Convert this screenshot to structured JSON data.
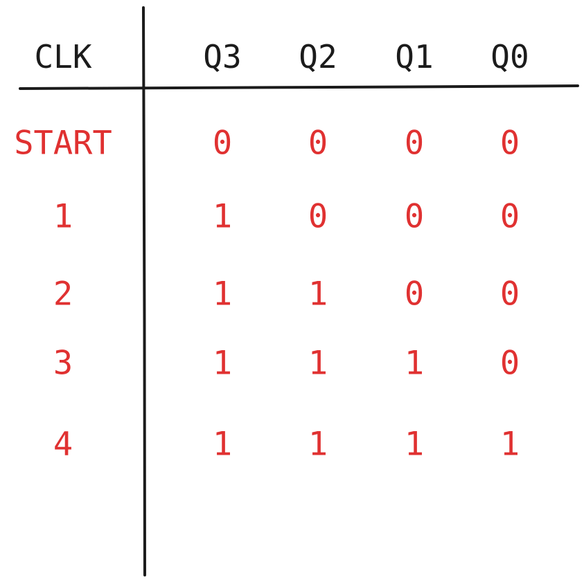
{
  "table": {
    "headers": {
      "clk": "CLK",
      "q3": "Q3",
      "q2": "Q2",
      "q1": "Q1",
      "q0": "Q0"
    },
    "rows": [
      {
        "clk": "START",
        "q3": "0",
        "q2": "0",
        "q1": "0",
        "q0": "0"
      },
      {
        "clk": "1",
        "q3": "1",
        "q2": "0",
        "q1": "0",
        "q0": "0"
      },
      {
        "clk": "2",
        "q3": "1",
        "q2": "1",
        "q1": "0",
        "q0": "0"
      },
      {
        "clk": "3",
        "q3": "1",
        "q2": "1",
        "q1": "1",
        "q0": "0"
      },
      {
        "clk": "4",
        "q3": "1",
        "q2": "1",
        "q1": "1",
        "q0": "1"
      }
    ]
  },
  "colors": {
    "header_text": "#1b1b1b",
    "data_text": "#e03131",
    "rule_line": "#1b1b1b",
    "background": "#ffffff"
  }
}
